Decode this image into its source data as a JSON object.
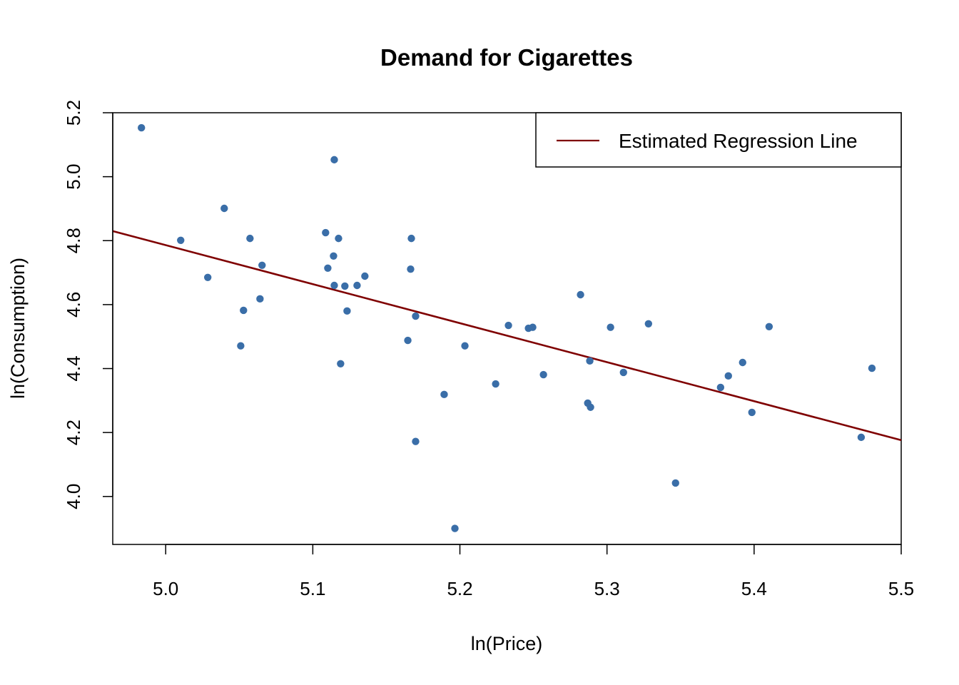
{
  "chart_data": {
    "type": "scatter",
    "title": "Demand for Cigarettes",
    "xlabel": "ln(Price)",
    "ylabel": "ln(Consumption)",
    "xlim": [
      4.964,
      5.5
    ],
    "ylim": [
      3.85,
      5.2
    ],
    "xticks": [
      5.0,
      5.1,
      5.2,
      5.3,
      5.4,
      5.5
    ],
    "xtick_labels": [
      "5.0",
      "5.1",
      "5.2",
      "5.3",
      "5.4",
      "5.5"
    ],
    "yticks": [
      4.0,
      4.2,
      4.4,
      4.6,
      4.8,
      5.0,
      5.2
    ],
    "ytick_labels": [
      "4.0",
      "4.2",
      "4.4",
      "4.6",
      "4.8",
      "5.0",
      "5.2"
    ],
    "grid": false,
    "legend": {
      "placement": "top-right",
      "entries": [
        "Estimated Regression Line"
      ]
    },
    "colors": {
      "points": "#3a6ea8",
      "regression_line": "#7f0000"
    },
    "regression_line": {
      "intercept": 10.886,
      "slope": -1.22
    },
    "points": [
      [
        4.9835,
        5.153
      ],
      [
        5.1146,
        5.053
      ],
      [
        5.0398,
        4.901
      ],
      [
        5.0102,
        4.801
      ],
      [
        5.0573,
        4.807
      ],
      [
        5.1087,
        4.825
      ],
      [
        5.1175,
        4.807
      ],
      [
        5.167,
        4.807
      ],
      [
        5.1141,
        4.752
      ],
      [
        5.0655,
        4.723
      ],
      [
        5.1102,
        4.714
      ],
      [
        5.1665,
        4.711
      ],
      [
        5.0286,
        4.685
      ],
      [
        5.1354,
        4.689
      ],
      [
        5.1146,
        4.66
      ],
      [
        5.1218,
        4.658
      ],
      [
        5.1301,
        4.66
      ],
      [
        5.0641,
        4.618
      ],
      [
        5.282,
        4.631
      ],
      [
        5.0529,
        4.582
      ],
      [
        5.1233,
        4.58
      ],
      [
        5.1699,
        4.564
      ],
      [
        5.233,
        4.535
      ],
      [
        5.3282,
        4.54
      ],
      [
        5.2466,
        4.526
      ],
      [
        5.2495,
        4.529
      ],
      [
        5.3024,
        4.529
      ],
      [
        5.4102,
        4.531
      ],
      [
        5.1646,
        4.488
      ],
      [
        5.051,
        4.471
      ],
      [
        5.2034,
        4.471
      ],
      [
        5.1189,
        4.415
      ],
      [
        5.2883,
        4.424
      ],
      [
        5.3922,
        4.419
      ],
      [
        5.3112,
        4.388
      ],
      [
        5.2568,
        4.381
      ],
      [
        5.3825,
        4.377
      ],
      [
        5.4801,
        4.401
      ],
      [
        5.2243,
        4.352
      ],
      [
        5.3772,
        4.341
      ],
      [
        5.1893,
        4.319
      ],
      [
        5.2869,
        4.292
      ],
      [
        5.2888,
        4.279
      ],
      [
        5.3985,
        4.263
      ],
      [
        5.4728,
        4.185
      ],
      [
        5.1699,
        4.172
      ],
      [
        5.3466,
        4.042
      ],
      [
        5.1966,
        3.9
      ]
    ]
  }
}
